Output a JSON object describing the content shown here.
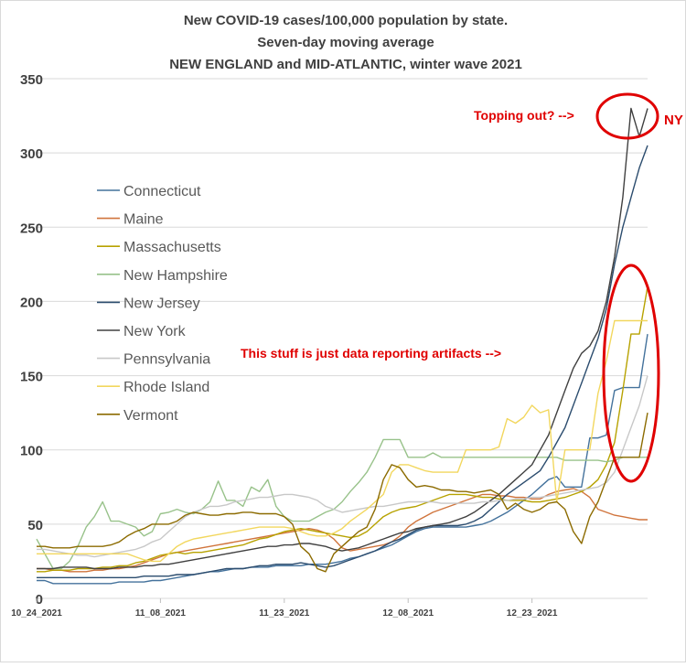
{
  "chart_data": {
    "type": "line",
    "title": [
      "New COVID-19 cases/100,000 population by state.",
      "Seven-day moving average",
      "NEW ENGLAND and MID-ATLANTIC, winter wave 2021"
    ],
    "xlabel": "",
    "ylabel": "",
    "ylim": [
      0,
      350
    ],
    "yticks": [
      0,
      50,
      100,
      150,
      200,
      250,
      300,
      350
    ],
    "x_start": "10_24_2021",
    "x_end": "01_06_2022",
    "x_tick_labels": [
      "10_24_2021",
      "11_08_2021",
      "11_23_2021",
      "12_08_2021",
      "12_23_2021"
    ],
    "x_tick_every": 15,
    "grid": "horizontal",
    "legend_position": "left",
    "series": [
      {
        "name": "Connecticut",
        "color": "#44729c",
        "values": [
          12,
          12,
          10,
          10,
          10,
          10,
          10,
          10,
          10,
          10,
          11,
          11,
          11,
          11,
          12,
          12,
          13,
          14,
          15,
          16,
          17,
          18,
          18,
          19,
          20,
          20,
          21,
          21,
          21,
          22,
          22,
          22,
          22,
          23,
          23,
          23,
          24,
          25,
          27,
          28,
          30,
          32,
          34,
          36,
          39,
          42,
          45,
          47,
          48,
          48,
          48,
          48,
          48,
          49,
          50,
          52,
          55,
          58,
          62,
          66,
          70,
          75,
          80,
          82,
          75,
          75,
          75,
          108,
          108,
          110,
          140,
          142,
          142,
          142,
          178
        ]
      },
      {
        "name": "Maine",
        "color": "#d0743c",
        "values": [
          20,
          20,
          19,
          19,
          18,
          18,
          18,
          19,
          19,
          20,
          20,
          21,
          22,
          24,
          26,
          28,
          30,
          31,
          32,
          33,
          34,
          35,
          36,
          37,
          38,
          39,
          40,
          41,
          42,
          43,
          44,
          45,
          46,
          47,
          46,
          44,
          40,
          34,
          32,
          33,
          34,
          35,
          36,
          38,
          42,
          48,
          52,
          55,
          58,
          60,
          62,
          64,
          66,
          68,
          70,
          70,
          69,
          69,
          68,
          68,
          67,
          67,
          70,
          72,
          73,
          74,
          72,
          68,
          60,
          58,
          56,
          55,
          54,
          53,
          53
        ]
      },
      {
        "name": "Massachusetts",
        "color": "#b7a200",
        "values": [
          18,
          18,
          19,
          19,
          19,
          20,
          20,
          20,
          21,
          21,
          22,
          22,
          24,
          25,
          27,
          29,
          30,
          31,
          30,
          31,
          31,
          32,
          33,
          34,
          35,
          36,
          38,
          40,
          41,
          43,
          45,
          46,
          47,
          46,
          45,
          44,
          43,
          42,
          41,
          42,
          45,
          50,
          55,
          58,
          60,
          61,
          62,
          64,
          66,
          68,
          70,
          70,
          70,
          69,
          68,
          68,
          67,
          66,
          66,
          66,
          65,
          65,
          66,
          67,
          68,
          70,
          72,
          75,
          80,
          90,
          105,
          140,
          178,
          178,
          210
        ]
      },
      {
        "name": "New Hampshire",
        "color": "#98c28a",
        "values": [
          40,
          30,
          20,
          20,
          25,
          35,
          48,
          55,
          65,
          52,
          52,
          50,
          48,
          42,
          45,
          57,
          58,
          60,
          58,
          57,
          60,
          65,
          79,
          66,
          66,
          62,
          75,
          72,
          80,
          62,
          55,
          52,
          52,
          52,
          55,
          58,
          60,
          65,
          72,
          78,
          85,
          95,
          107,
          107,
          107,
          95,
          95,
          95,
          98,
          95,
          95,
          95,
          95,
          95,
          95,
          95,
          95,
          95,
          95,
          95,
          95,
          95,
          95,
          95,
          93,
          93,
          93,
          93,
          93,
          92,
          93,
          95,
          95,
          95,
          95
        ]
      },
      {
        "name": "New Jersey",
        "color": "#2b4c6e",
        "values": [
          14,
          14,
          14,
          14,
          14,
          14,
          14,
          14,
          14,
          14,
          14,
          14,
          14,
          15,
          15,
          15,
          15,
          16,
          16,
          16,
          17,
          18,
          19,
          20,
          20,
          20,
          21,
          22,
          22,
          23,
          23,
          23,
          24,
          23,
          22,
          21,
          22,
          24,
          26,
          28,
          30,
          32,
          35,
          38,
          40,
          43,
          46,
          48,
          49,
          49,
          49,
          49,
          50,
          52,
          55,
          60,
          65,
          70,
          74,
          78,
          82,
          86,
          95,
          105,
          115,
          130,
          145,
          160,
          175,
          195,
          225,
          250,
          270,
          290,
          305
        ]
      },
      {
        "name": "New York",
        "color": "#404040",
        "values": [
          20,
          20,
          20,
          21,
          21,
          21,
          21,
          20,
          20,
          20,
          21,
          21,
          21,
          22,
          22,
          23,
          23,
          24,
          25,
          26,
          27,
          28,
          29,
          30,
          31,
          32,
          33,
          34,
          35,
          35,
          36,
          36,
          37,
          37,
          36,
          35,
          33,
          32,
          33,
          34,
          36,
          38,
          40,
          42,
          44,
          45,
          47,
          48,
          49,
          50,
          51,
          53,
          55,
          58,
          62,
          66,
          70,
          75,
          80,
          85,
          90,
          100,
          110,
          125,
          140,
          155,
          165,
          170,
          180,
          200,
          230,
          270,
          330,
          311,
          330
        ]
      },
      {
        "name": "Pennsylvania",
        "color": "#c8c8c8",
        "values": [
          33,
          33,
          32,
          31,
          30,
          29,
          29,
          28,
          29,
          30,
          31,
          32,
          33,
          35,
          38,
          40,
          45,
          50,
          55,
          58,
          60,
          62,
          62,
          63,
          65,
          66,
          67,
          68,
          68,
          69,
          70,
          70,
          69,
          68,
          66,
          62,
          60,
          58,
          59,
          60,
          61,
          62,
          62,
          63,
          64,
          65,
          65,
          65,
          65,
          64,
          64,
          64,
          64,
          64,
          65,
          65,
          66,
          66,
          67,
          67,
          68,
          68,
          69,
          70,
          71,
          72,
          73,
          74,
          75,
          78,
          85,
          100,
          115,
          130,
          150
        ]
      },
      {
        "name": "Rhode Island",
        "color": "#f2d75e",
        "values": [
          30,
          30,
          30,
          30,
          30,
          30,
          30,
          30,
          30,
          30,
          30,
          30,
          28,
          26,
          25,
          25,
          30,
          35,
          38,
          40,
          41,
          42,
          43,
          44,
          45,
          46,
          47,
          48,
          48,
          48,
          48,
          47,
          45,
          43,
          42,
          42,
          44,
          47,
          52,
          56,
          60,
          65,
          70,
          85,
          90,
          90,
          88,
          86,
          85,
          85,
          85,
          85,
          100,
          100,
          100,
          100,
          102,
          121,
          118,
          122,
          130,
          125,
          127,
          65,
          100,
          100,
          100,
          100,
          138,
          160,
          187,
          187,
          187,
          187,
          187
        ]
      },
      {
        "name": "Vermont",
        "color": "#8c6b00",
        "values": [
          35,
          35,
          34,
          34,
          34,
          35,
          35,
          35,
          35,
          36,
          38,
          42,
          45,
          47,
          50,
          50,
          50,
          52,
          56,
          58,
          57,
          56,
          56,
          57,
          57,
          58,
          58,
          57,
          57,
          57,
          55,
          50,
          35,
          30,
          20,
          18,
          30,
          35,
          40,
          45,
          48,
          60,
          80,
          90,
          88,
          80,
          75,
          76,
          75,
          73,
          73,
          72,
          72,
          71,
          72,
          73,
          70,
          60,
          64,
          60,
          58,
          60,
          64,
          65,
          60,
          45,
          37,
          55,
          65,
          80,
          95,
          95,
          95,
          95,
          125
        ]
      }
    ],
    "annotations": [
      {
        "text": "Topping out? -->",
        "color": "#e00000"
      },
      {
        "text": "NY",
        "color": "#e00000"
      },
      {
        "text": "This stuff is just data reporting artifacts -->",
        "color": "#e00000"
      }
    ]
  }
}
